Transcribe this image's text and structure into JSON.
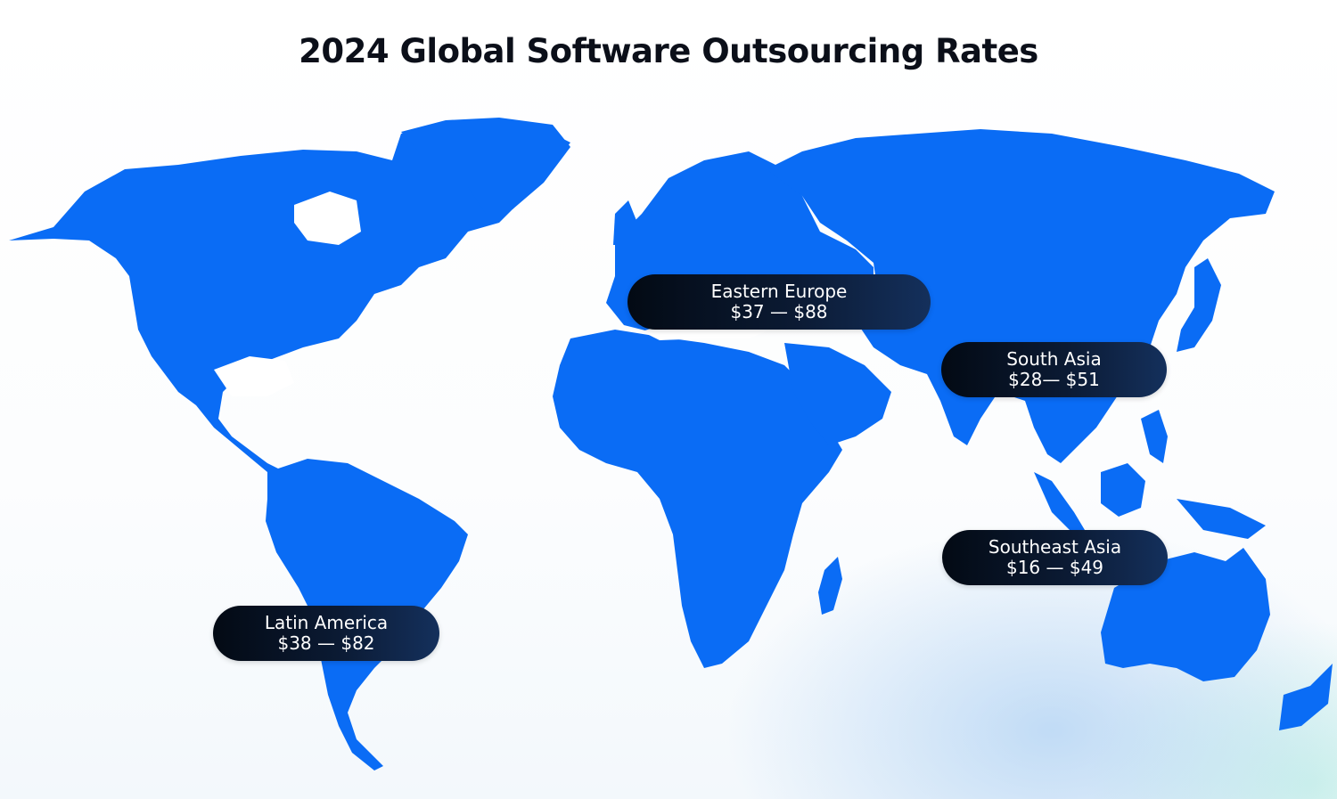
{
  "title": "2024 Global Software Outsourcing Rates",
  "colors": {
    "land": "#0a6cf5",
    "label_bg": "#0a1628",
    "label_text": "#ffffff"
  },
  "regions": [
    {
      "id": "eastern-europe",
      "name": "Eastern Europe",
      "rate": "$37 — $88"
    },
    {
      "id": "south-asia",
      "name": "South Asia",
      "rate": "$28— $51"
    },
    {
      "id": "southeast-asia",
      "name": "Southeast Asia",
      "rate": "$16 — $49"
    },
    {
      "id": "latin-america",
      "name": "Latin America",
      "rate": "$38 — $82"
    }
  ]
}
